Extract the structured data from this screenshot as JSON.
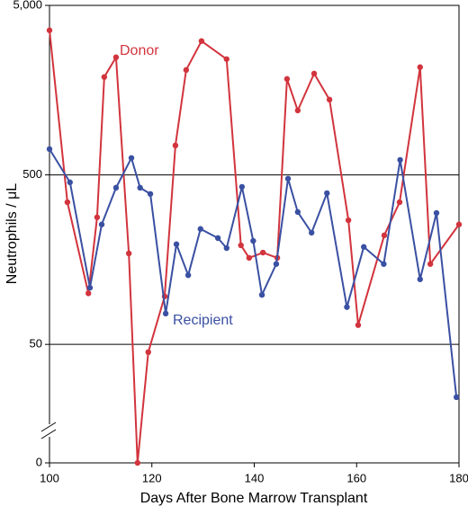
{
  "chart_data": {
    "type": "line",
    "xlabel": "Days After Bone Marrow Transplant",
    "ylabel": "Neutrophils / μL",
    "xlim": [
      100,
      180
    ],
    "xticks": [
      100,
      120,
      140,
      160,
      180
    ],
    "ylim": [
      10,
      5000
    ],
    "log_y": true,
    "yticks": [
      0,
      50,
      500,
      {
        "value": 5000,
        "label": "5,000"
      }
    ],
    "grid": true,
    "series": [
      {
        "name": "Donor",
        "color": "#d2343d",
        "x": [
          100,
          103.5,
          107.6,
          109.3,
          110.7,
          113,
          115.5,
          117.2,
          119.3,
          122.5,
          124.6,
          126.7,
          129.7,
          134.6,
          137.4,
          139,
          141.7,
          144.5,
          146.4,
          148.5,
          151.7,
          154.7,
          158.4,
          160.3,
          165.4,
          168.4,
          172.4,
          174.4,
          180
        ],
        "values": [
          3565,
          345,
          100,
          281,
          1890,
          2470,
          172,
          0,
          45,
          96,
          746,
          2080,
          3080,
          2410,
          192,
          162,
          174,
          162,
          1840,
          1200,
          1980,
          1390,
          270,
          65,
          220,
          345,
          2160,
          149,
          255
        ]
      },
      {
        "name": "Recipient",
        "color": "#3a50a2",
        "x": [
          100,
          104,
          107.9,
          110.2,
          113,
          116,
          117.7,
          119.7,
          122.7,
          124.8,
          127.1,
          129.5,
          132.9,
          134.6,
          137.6,
          139.8,
          141.5,
          144.3,
          146.6,
          148.5,
          151.2,
          154.2,
          158.1,
          161.4,
          165.3,
          168.5,
          172.4,
          175.6,
          179.5
        ],
        "values": [
          710,
          452,
          108,
          255,
          420,
          629,
          420,
          386,
          76,
          195,
          128,
          240,
          212,
          185,
          425,
          204,
          98,
          149,
          475,
          302,
          228,
          390,
          83,
          188,
          149,
          613,
          121,
          298,
          24.4
        ]
      }
    ]
  }
}
